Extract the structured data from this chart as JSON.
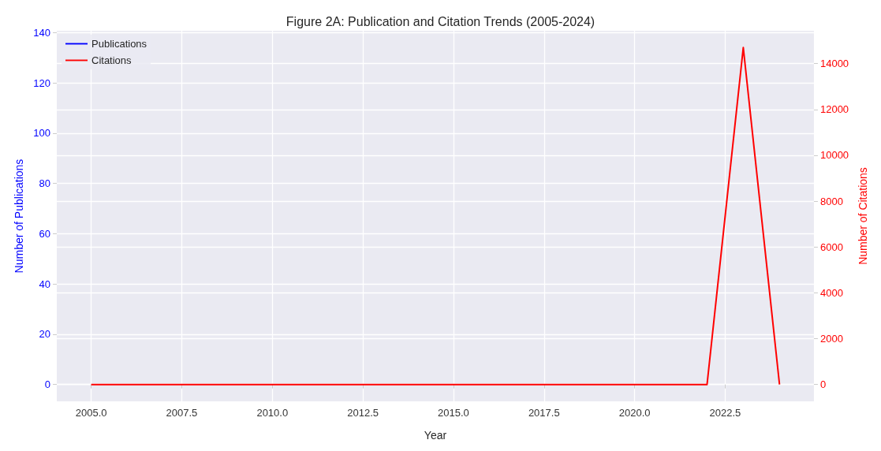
{
  "chart_data": {
    "type": "line",
    "title": "Figure 2A: Publication and Citation Trends (2005-2024)",
    "xlabel": "Year",
    "ylabel": "Number of Publications",
    "y2label": "Number of Citations",
    "x": [
      2005,
      2006,
      2007,
      2008,
      2009,
      2010,
      2011,
      2012,
      2013,
      2014,
      2015,
      2016,
      2017,
      2018,
      2019,
      2020,
      2021,
      2022,
      2023,
      2024
    ],
    "series": [
      {
        "name": "Publications",
        "color": "#0000ff",
        "values": [
          null,
          null,
          null,
          null,
          null,
          null,
          null,
          null,
          null,
          null,
          null,
          null,
          null,
          null,
          null,
          null,
          null,
          null,
          null,
          null
        ]
      },
      {
        "name": "Citations",
        "color": "#ff0000",
        "axis": "y2",
        "values": [
          0,
          0,
          0,
          0,
          0,
          0,
          0,
          0,
          0,
          0,
          0,
          0,
          0,
          0,
          0,
          0,
          0,
          0,
          14700,
          0
        ]
      }
    ],
    "xlim": [
      2004.05,
      2024.95
    ],
    "xticks": [
      {
        "value": 2005,
        "label": "2005.0"
      },
      {
        "value": 2007.5,
        "label": "2007.5"
      },
      {
        "value": 2010,
        "label": "2010.0"
      },
      {
        "value": 2012.5,
        "label": "2012.5"
      },
      {
        "value": 2015,
        "label": "2015.0"
      },
      {
        "value": 2017.5,
        "label": "2017.5"
      },
      {
        "value": 2020,
        "label": "2020.0"
      },
      {
        "value": 2022.5,
        "label": "2022.5"
      }
    ],
    "ylim": [
      -6.7,
      140.7
    ],
    "yticks": [
      0,
      20,
      40,
      60,
      80,
      100,
      120,
      140
    ],
    "y2lim": [
      -735,
      15435
    ],
    "y2ticks": [
      0,
      2000,
      4000,
      6000,
      8000,
      10000,
      12000,
      14000
    ],
    "grid": true,
    "legend": "top left",
    "marker": "none",
    "line_style": "solid"
  }
}
